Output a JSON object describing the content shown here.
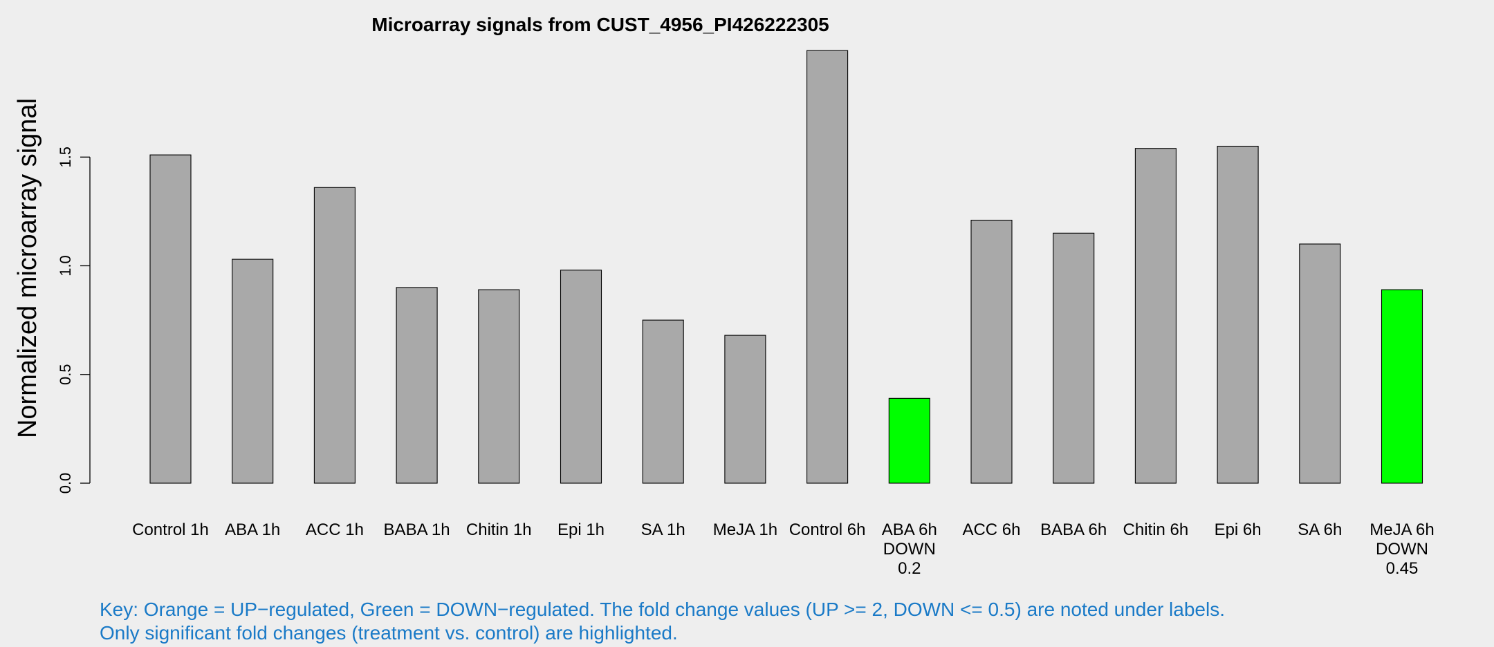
{
  "chart_data": {
    "type": "bar",
    "title": "Microarray signals from CUST_4956_PI426222305",
    "xlabel": "",
    "ylabel": "Normalized microarray signal",
    "ylim": [
      0,
      2.0
    ],
    "yticks": [
      "0.0",
      "0.5",
      "1.0",
      "1.5"
    ],
    "grid": false,
    "categories": [
      "Control 1h",
      "ABA 1h",
      "ACC 1h",
      "BABA 1h",
      "Chitin 1h",
      "Epi 1h",
      "SA 1h",
      "MeJA 1h",
      "Control 6h",
      "ABA 6h",
      "ACC 6h",
      "BABA 6h",
      "Chitin 6h",
      "Epi 6h",
      "SA 6h",
      "MeJA 6h"
    ],
    "values": [
      1.51,
      1.03,
      1.36,
      0.9,
      0.89,
      0.98,
      0.75,
      0.68,
      1.99,
      0.39,
      1.21,
      1.15,
      1.54,
      1.55,
      1.1,
      0.89
    ],
    "annotations": [
      "",
      "",
      "",
      "",
      "",
      "",
      "",
      "",
      "",
      "DOWN\n0.2",
      "",
      "",
      "",
      "",
      "",
      "DOWN\n0.45"
    ],
    "bar_colors": [
      "#a9a9a9",
      "#a9a9a9",
      "#a9a9a9",
      "#a9a9a9",
      "#a9a9a9",
      "#a9a9a9",
      "#a9a9a9",
      "#a9a9a9",
      "#a9a9a9",
      "#00ff00",
      "#a9a9a9",
      "#a9a9a9",
      "#a9a9a9",
      "#a9a9a9",
      "#a9a9a9",
      "#00ff00"
    ]
  },
  "key": {
    "line1": "Key: Orange = UP−regulated, Green = DOWN−regulated. The fold change values (UP >= 2, DOWN <= 0.5) are noted under labels.",
    "line2": "Only significant fold changes (treatment vs. control) are highlighted."
  },
  "colors": {
    "background": "#eeeeee",
    "bar_default": "#a9a9a9",
    "bar_down": "#00ff00",
    "key_text": "#1a7ac7"
  }
}
